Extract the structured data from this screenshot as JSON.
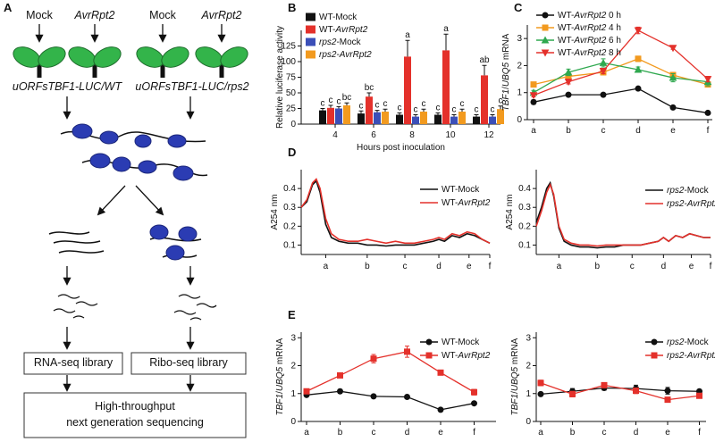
{
  "diagram": {
    "panel": "A",
    "treatments": [
      "Mock",
      "AvrRpt2",
      "Mock",
      "AvrRpt2"
    ],
    "genotypes": [
      "uORFsTBF1-LUC/WT",
      "uORFsTBF1-LUC/rps2"
    ],
    "libraries": [
      "RNA-seq library",
      "Ribo-seq library"
    ],
    "sequencing": [
      "High-throughput",
      "next generation sequencing"
    ]
  },
  "chart_data": [
    {
      "type": "bar",
      "panel": "B",
      "y_label": "Relative luciferase activity",
      "x_label": "Hours post inoculation",
      "categories": [
        "4",
        "6",
        "8",
        "10",
        "12"
      ],
      "ylim": [
        0,
        150
      ],
      "yticks": [
        0,
        25,
        50,
        75,
        100,
        125
      ],
      "series": [
        {
          "name": "WT-Mock",
          "color": "#111111",
          "values": [
            22,
            17,
            15,
            15,
            12
          ],
          "errors": [
            3,
            4,
            3,
            3,
            3
          ],
          "letters": [
            "c",
            "c",
            "c",
            "c",
            "c"
          ]
        },
        {
          "name": "WT-AvrRpt2",
          "color": "#e4312b",
          "values": [
            26,
            44,
            108,
            118,
            78
          ],
          "errors": [
            4,
            6,
            26,
            26,
            16
          ],
          "letters": [
            "c",
            "bc",
            "a",
            "a",
            "ab"
          ]
        },
        {
          "name": "rps2-Mock",
          "color": "#3b4fb8",
          "values": [
            25,
            19,
            12,
            12,
            12
          ],
          "errors": [
            3,
            3,
            3,
            3,
            3
          ],
          "letters": [
            "c",
            "c",
            "c",
            "c",
            "c"
          ]
        },
        {
          "name": "rps2-AvrRpt2",
          "color": "#f29a1f",
          "values": [
            30,
            20,
            20,
            20,
            24
          ],
          "errors": [
            4,
            4,
            4,
            4,
            5
          ],
          "letters": [
            "bc",
            "c",
            "c",
            "c",
            "c"
          ]
        }
      ]
    },
    {
      "type": "line",
      "panel": "C",
      "y_label": "TBF1/UBQ5 mRNA",
      "categories": [
        "a",
        "b",
        "c",
        "d",
        "e",
        "f"
      ],
      "ylim": [
        0,
        3.5
      ],
      "yticks": [
        0,
        1,
        2,
        3
      ],
      "series": [
        {
          "name": "WT-AvrRpt2 0 h",
          "color": "#111111",
          "marker": "circle",
          "values": [
            0.65,
            0.92,
            0.92,
            1.15,
            0.45,
            0.25
          ],
          "errors": [
            0.08,
            0.04,
            0.04,
            0.06,
            0.03,
            0.03
          ]
        },
        {
          "name": "WT-AvrRpt2 4 h",
          "color": "#f29a1f",
          "marker": "square",
          "values": [
            1.3,
            1.6,
            1.75,
            2.25,
            1.65,
            1.3
          ],
          "errors": [
            0.08,
            0.08,
            0.1,
            0.1,
            0.1,
            0.08
          ]
        },
        {
          "name": "WT-AvrRpt2 6 h",
          "color": "#2fa84f",
          "marker": "triangle",
          "values": [
            1.0,
            1.75,
            2.1,
            1.85,
            1.55,
            1.4
          ],
          "errors": [
            0.08,
            0.12,
            0.15,
            0.1,
            0.15,
            0.15
          ]
        },
        {
          "name": "WT-AvrRpt2 8 h",
          "color": "#e4312b",
          "marker": "triangle-down",
          "values": [
            0.9,
            1.4,
            1.8,
            3.3,
            2.65,
            1.5
          ],
          "errors": [
            0.06,
            0.08,
            0.1,
            0.12,
            0.05,
            0.1
          ]
        }
      ]
    },
    {
      "type": "line",
      "panel": "D",
      "y_label": "A254 nm",
      "x": [
        0,
        3,
        6,
        8,
        10,
        13,
        16,
        20,
        25,
        30,
        35,
        40,
        45,
        50,
        55,
        60,
        65,
        70,
        73,
        76,
        80,
        84,
        88,
        92,
        96,
        100
      ],
      "xlim": [
        0,
        100
      ],
      "xticks": [
        {
          "value": 13,
          "label": "a"
        },
        {
          "value": 35,
          "label": "b"
        },
        {
          "value": 55,
          "label": "c"
        },
        {
          "value": 73,
          "label": "d"
        },
        {
          "value": 89,
          "label": "e"
        },
        {
          "value": 100,
          "label": "f"
        }
      ],
      "ylim": [
        0.05,
        0.5
      ],
      "yticks": [
        0.1,
        0.2,
        0.3,
        0.4
      ],
      "series": [
        {
          "name": "WT-Mock",
          "color": "#111111",
          "values": [
            0.3,
            0.33,
            0.42,
            0.44,
            0.38,
            0.21,
            0.14,
            0.12,
            0.11,
            0.11,
            0.1,
            0.1,
            0.095,
            0.1,
            0.1,
            0.1,
            0.11,
            0.12,
            0.13,
            0.12,
            0.15,
            0.14,
            0.16,
            0.15,
            0.13,
            0.11
          ]
        },
        {
          "name": "WT-AvrRpt2",
          "color": "#e4312b",
          "values": [
            0.3,
            0.34,
            0.43,
            0.45,
            0.4,
            0.24,
            0.16,
            0.13,
            0.12,
            0.12,
            0.13,
            0.12,
            0.11,
            0.12,
            0.11,
            0.11,
            0.12,
            0.13,
            0.14,
            0.13,
            0.16,
            0.15,
            0.17,
            0.16,
            0.13,
            0.11
          ]
        }
      ]
    },
    {
      "type": "line",
      "y_label": "A254 nm",
      "x": [
        0,
        3,
        6,
        8,
        10,
        13,
        16,
        20,
        25,
        30,
        35,
        40,
        45,
        50,
        55,
        60,
        65,
        70,
        73,
        76,
        80,
        84,
        88,
        92,
        96,
        100
      ],
      "xlim": [
        0,
        100
      ],
      "xticks": [
        {
          "value": 13,
          "label": "a"
        },
        {
          "value": 35,
          "label": "b"
        },
        {
          "value": 55,
          "label": "c"
        },
        {
          "value": 73,
          "label": "d"
        },
        {
          "value": 89,
          "label": "e"
        },
        {
          "value": 100,
          "label": "f"
        }
      ],
      "ylim": [
        0.05,
        0.5
      ],
      "yticks": [
        0.1,
        0.2,
        0.3,
        0.4
      ],
      "series": [
        {
          "name": "rps2-Mock",
          "color": "#111111",
          "values": [
            0.22,
            0.3,
            0.4,
            0.43,
            0.36,
            0.19,
            0.12,
            0.1,
            0.09,
            0.09,
            0.085,
            0.09,
            0.09,
            0.1,
            0.1,
            0.1,
            0.11,
            0.12,
            0.14,
            0.12,
            0.15,
            0.14,
            0.16,
            0.15,
            0.14,
            0.14
          ]
        },
        {
          "name": "rps2-AvrRpt2",
          "color": "#e4312b",
          "values": [
            0.2,
            0.28,
            0.38,
            0.42,
            0.37,
            0.2,
            0.13,
            0.11,
            0.1,
            0.1,
            0.095,
            0.1,
            0.1,
            0.1,
            0.1,
            0.1,
            0.11,
            0.12,
            0.14,
            0.12,
            0.15,
            0.14,
            0.16,
            0.15,
            0.14,
            0.14
          ]
        }
      ]
    },
    {
      "type": "line",
      "panel": "E",
      "y_label": "TBF1/UBQ5 mRNA",
      "categories": [
        "a",
        "b",
        "c",
        "d",
        "e",
        "f"
      ],
      "ylim": [
        0,
        3.2
      ],
      "yticks": [
        0,
        1,
        2,
        3
      ],
      "series": [
        {
          "name": "WT-Mock",
          "color": "#111111",
          "marker": "circle",
          "values": [
            0.95,
            1.08,
            0.9,
            0.88,
            0.42,
            0.65
          ],
          "errors": [
            0.04,
            0.07,
            0.06,
            0.03,
            0.02,
            0.03
          ]
        },
        {
          "name": "WT-AvrRpt2",
          "color": "#e4312b",
          "marker": "square",
          "values": [
            1.08,
            1.65,
            2.25,
            2.5,
            1.75,
            1.05
          ],
          "errors": [
            0.06,
            0.04,
            0.15,
            0.2,
            0.08,
            0.1
          ]
        }
      ]
    },
    {
      "type": "line",
      "y_label": "TBF1/UBQ5 mRNA",
      "categories": [
        "a",
        "b",
        "c",
        "d",
        "e",
        "f"
      ],
      "ylim": [
        0,
        3.2
      ],
      "yticks": [
        0,
        1,
        2,
        3
      ],
      "series": [
        {
          "name": "rps2-Mock",
          "color": "#111111",
          "marker": "circle",
          "values": [
            0.98,
            1.08,
            1.2,
            1.18,
            1.1,
            1.08
          ],
          "errors": [
            0.03,
            0.1,
            0.08,
            0.12,
            0.12,
            0.06
          ]
        },
        {
          "name": "rps2-AvrRpt2",
          "color": "#e4312b",
          "marker": "square",
          "values": [
            1.38,
            0.98,
            1.3,
            1.1,
            0.78,
            0.92
          ],
          "errors": [
            0.1,
            0.1,
            0.06,
            0.1,
            0.05,
            0.05
          ]
        }
      ]
    }
  ]
}
